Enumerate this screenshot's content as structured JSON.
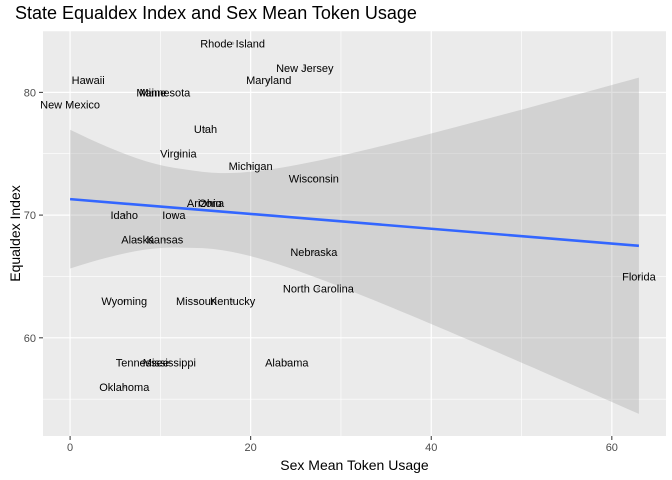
{
  "chart_data": {
    "type": "scatter",
    "title": "State Equaldex Index and Sex Mean Token Usage",
    "xlabel": "Sex Mean Token Usage",
    "ylabel": "Equaldex Index",
    "xlim": [
      -3,
      66
    ],
    "ylim": [
      52,
      85
    ],
    "xticks": [
      0,
      20,
      40,
      60
    ],
    "yticks": [
      60,
      70,
      80
    ],
    "grid": true,
    "points": [
      {
        "label": "Rhode Island",
        "x": 18,
        "y": 84
      },
      {
        "label": "New Jersey",
        "x": 26,
        "y": 82
      },
      {
        "label": "Hawaii",
        "x": 2,
        "y": 81
      },
      {
        "label": "Maryland",
        "x": 22,
        "y": 81
      },
      {
        "label": "Maine",
        "x": 9,
        "y": 80
      },
      {
        "label": "Minnesota",
        "x": 10.5,
        "y": 80
      },
      {
        "label": "New Mexico",
        "x": 0,
        "y": 79
      },
      {
        "label": "Utah",
        "x": 15,
        "y": 77
      },
      {
        "label": "Virginia",
        "x": 12,
        "y": 75
      },
      {
        "label": "Michigan",
        "x": 20,
        "y": 74
      },
      {
        "label": "Wisconsin",
        "x": 27,
        "y": 73
      },
      {
        "label": "Arizona",
        "x": 15,
        "y": 71
      },
      {
        "label": "Ohio",
        "x": 15.5,
        "y": 71
      },
      {
        "label": "Idaho",
        "x": 6,
        "y": 70
      },
      {
        "label": "Iowa",
        "x": 11.5,
        "y": 70
      },
      {
        "label": "Alaska",
        "x": 7.5,
        "y": 68
      },
      {
        "label": "Kansas",
        "x": 10.5,
        "y": 68
      },
      {
        "label": "Nebraska",
        "x": 27,
        "y": 67
      },
      {
        "label": "Florida",
        "x": 63,
        "y": 65
      },
      {
        "label": "North Carolina",
        "x": 27.5,
        "y": 64
      },
      {
        "label": "Wyoming",
        "x": 6,
        "y": 63
      },
      {
        "label": "Missouri",
        "x": 14,
        "y": 63
      },
      {
        "label": "Kentucky",
        "x": 18,
        "y": 63
      },
      {
        "label": "Tennessee",
        "x": 8,
        "y": 58
      },
      {
        "label": "Mississippi",
        "x": 11,
        "y": 58
      },
      {
        "label": "Alabama",
        "x": 24,
        "y": 58
      },
      {
        "label": "Oklahoma",
        "x": 6,
        "y": 56
      }
    ],
    "trend": {
      "x": [
        0,
        63
      ],
      "y": [
        71.3,
        67.5
      ],
      "ci_lower": [
        65.7,
        53.9
      ],
      "ci_upper": [
        77.0,
        81.3
      ],
      "color": "#3366ff"
    },
    "colors": {
      "panel_background": "#ebebeb",
      "grid": "#ffffff",
      "ribbon": "#999999",
      "point": "#000000"
    }
  }
}
